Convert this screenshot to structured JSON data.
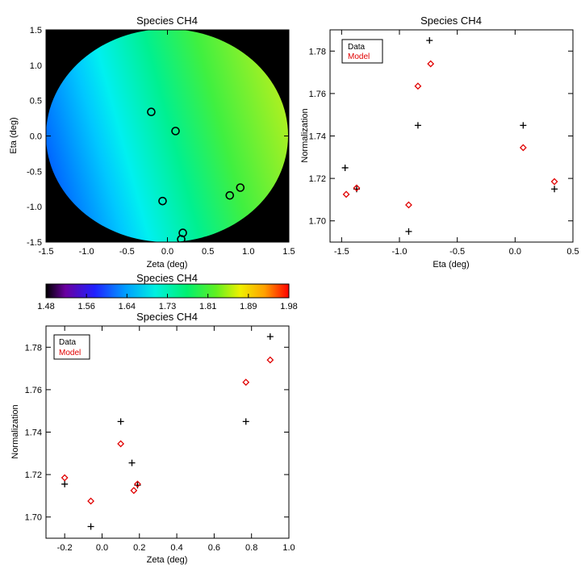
{
  "chart_data": [
    {
      "type": "heatmap",
      "title": "Species CH4",
      "xlabel": "Zeta (deg)",
      "ylabel": "Eta (deg)",
      "xlim": [
        -1.5,
        1.5
      ],
      "ylim": [
        -1.5,
        1.5
      ],
      "xticks": [
        "-1.5",
        "-1.0",
        "-0.5",
        "0.0",
        "0.5",
        "1.0",
        "1.5"
      ],
      "yticks": [
        "-1.5",
        "-1.0",
        "-0.5",
        "0.0",
        "0.5",
        "1.0",
        "1.5"
      ],
      "background_color": "#000000",
      "markers": [
        {
          "zeta": -0.2,
          "eta": 0.34
        },
        {
          "zeta": 0.1,
          "eta": 0.07
        },
        {
          "zeta": -0.06,
          "eta": -0.92
        },
        {
          "zeta": 0.77,
          "eta": -0.84
        },
        {
          "zeta": 0.9,
          "eta": -0.73
        },
        {
          "zeta": 0.19,
          "eta": -1.37
        },
        {
          "zeta": 0.17,
          "eta": -1.46
        }
      ]
    },
    {
      "type": "scatter",
      "title": "Species CH4",
      "xlabel": "Eta (deg)",
      "ylabel": "Normalization",
      "xlim": [
        -1.6,
        0.5
      ],
      "ylim": [
        1.69,
        1.79
      ],
      "xticks": [
        "-1.5",
        "-1.0",
        "-0.5",
        "0.0",
        "0.5"
      ],
      "yticks": [
        "1.70",
        "1.72",
        "1.74",
        "1.76",
        "1.78"
      ],
      "legend": [
        "Data",
        "Model"
      ],
      "legend_position": "top-left",
      "series": [
        {
          "name": "Data",
          "color": "#000000",
          "marker": "plus",
          "x": [
            -1.47,
            -1.37,
            -0.92,
            -0.84,
            -0.74,
            0.07,
            0.34
          ],
          "y": [
            1.725,
            1.715,
            1.695,
            1.745,
            1.785,
            1.745,
            1.715
          ]
        },
        {
          "name": "Model",
          "color": "#e00000",
          "marker": "diamond",
          "x": [
            -1.46,
            -1.37,
            -0.92,
            -0.84,
            -0.73,
            0.07,
            0.34
          ],
          "y": [
            1.7125,
            1.7155,
            1.7075,
            1.7635,
            1.774,
            1.7345,
            1.7185
          ]
        }
      ]
    },
    {
      "type": "colorbar",
      "title": "Species CH4",
      "range": [
        1.48,
        1.98
      ],
      "ticks": [
        "1.48",
        "1.56",
        "1.64",
        "1.73",
        "1.81",
        "1.89",
        "1.98"
      ]
    },
    {
      "type": "scatter",
      "title": "Species CH4",
      "xlabel": "Zeta (deg)",
      "ylabel": "Normalization",
      "xlim": [
        -0.3,
        1.0
      ],
      "ylim": [
        1.69,
        1.79
      ],
      "xticks": [
        "-0.2",
        "0.0",
        "0.2",
        "0.4",
        "0.6",
        "0.8",
        "1.0"
      ],
      "yticks": [
        "1.70",
        "1.72",
        "1.74",
        "1.76",
        "1.78"
      ],
      "legend": [
        "Data",
        "Model"
      ],
      "legend_position": "top-left",
      "series": [
        {
          "name": "Data",
          "color": "#000000",
          "marker": "plus",
          "x": [
            -0.2,
            -0.06,
            0.1,
            0.16,
            0.19,
            0.77,
            0.9
          ],
          "y": [
            1.7155,
            1.6955,
            1.745,
            1.7255,
            1.715,
            1.745,
            1.785
          ]
        },
        {
          "name": "Model",
          "color": "#e00000",
          "marker": "diamond",
          "x": [
            -0.2,
            -0.06,
            0.1,
            0.17,
            0.19,
            0.77,
            0.9
          ],
          "y": [
            1.7185,
            1.7075,
            1.7345,
            1.7125,
            1.7155,
            1.7635,
            1.774
          ]
        }
      ]
    }
  ]
}
